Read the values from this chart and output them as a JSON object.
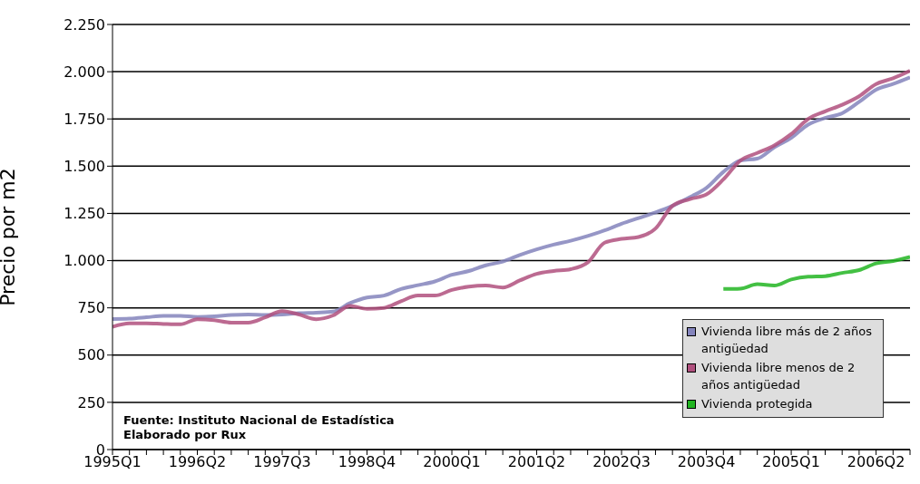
{
  "chart_data": {
    "type": "line",
    "ylabel": "Precio por m2",
    "categories": [
      "1995Q1",
      null,
      null,
      null,
      null,
      "1996Q2",
      null,
      null,
      null,
      null,
      "1997Q3",
      null,
      null,
      null,
      null,
      "1998Q4",
      null,
      null,
      null,
      null,
      "2000Q1",
      null,
      null,
      null,
      null,
      "2001Q2",
      null,
      null,
      null,
      null,
      "2002Q3",
      null,
      null,
      null,
      null,
      "2003Q4",
      null,
      null,
      null,
      null,
      "2005Q1",
      null,
      null,
      null,
      null,
      "2006Q2",
      null,
      null
    ],
    "series": [
      {
        "name": "Vivienda libre más de 2 años antigüedad",
        "color": "#8484bc",
        "values": [
          691,
          693,
          700,
          708,
          708,
          702,
          705,
          712,
          715,
          712,
          715,
          722,
          725,
          730,
          775,
          805,
          815,
          850,
          870,
          890,
          925,
          945,
          975,
          995,
          1030,
          1060,
          1085,
          1105,
          1130,
          1160,
          1195,
          1225,
          1255,
          1290,
          1335,
          1385,
          1470,
          1530,
          1540,
          1600,
          1650,
          1720,
          1755,
          1780,
          1840,
          1905,
          1935,
          1970
        ]
      },
      {
        "name": "Vivienda libre menos de 2 años antigüedad",
        "color": "#b0507e",
        "values": [
          650,
          668,
          668,
          665,
          663,
          690,
          685,
          672,
          672,
          700,
          733,
          715,
          690,
          710,
          760,
          745,
          750,
          785,
          815,
          815,
          845,
          862,
          868,
          858,
          895,
          930,
          945,
          955,
          990,
          1095,
          1115,
          1125,
          1170,
          1290,
          1325,
          1350,
          1430,
          1530,
          1570,
          1610,
          1670,
          1750,
          1790,
          1825,
          1870,
          1935,
          1965,
          2005
        ]
      },
      {
        "name": "Vivienda protegida",
        "color": "#22b522",
        "values": [
          null,
          null,
          null,
          null,
          null,
          null,
          null,
          null,
          null,
          null,
          null,
          null,
          null,
          null,
          null,
          null,
          null,
          null,
          null,
          null,
          null,
          null,
          null,
          null,
          null,
          null,
          null,
          null,
          null,
          null,
          null,
          null,
          null,
          null,
          null,
          null,
          850,
          852,
          875,
          868,
          900,
          915,
          918,
          935,
          950,
          985,
          998,
          1020
        ]
      }
    ],
    "ylim": [
      0,
      2250
    ],
    "yticks": [
      {
        "value": 0,
        "label": "0"
      },
      {
        "value": 250,
        "label": "250"
      },
      {
        "value": 500,
        "label": "500"
      },
      {
        "value": 750,
        "label": "750"
      },
      {
        "value": 1000,
        "label": "1.000"
      },
      {
        "value": 1250,
        "label": "1.250"
      },
      {
        "value": 1500,
        "label": "1.500"
      },
      {
        "value": 1750,
        "label": "1.750"
      },
      {
        "value": 2000,
        "label": "2.000"
      },
      {
        "value": 2250,
        "label": "2.250"
      }
    ],
    "grid": "y",
    "legend": "bottom right",
    "marker": "none",
    "line_style": "solid",
    "annotations": [
      "Fuente: Instituto Nacional de Estadística",
      "Elaborado por Rux"
    ]
  }
}
